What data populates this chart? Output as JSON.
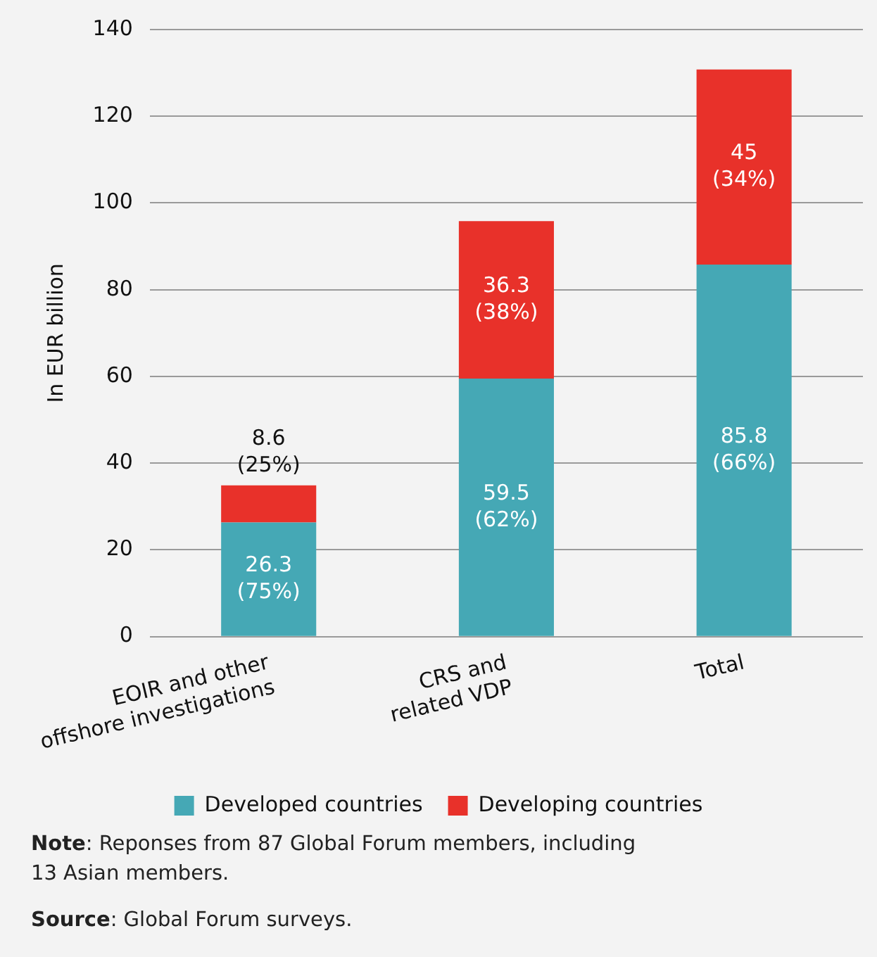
{
  "chart_data": {
    "type": "bar",
    "stacked": true,
    "ylabel": "In EUR billion",
    "categories": [
      "EOIR and other\noffshore investigations",
      "CRS and\nrelated VDP",
      "Total"
    ],
    "series": [
      {
        "name": "Developed countries",
        "color": "#45a8b5",
        "values": [
          26.3,
          59.5,
          85.8
        ],
        "value_labels": [
          "26.3\n(75%)",
          "59.5\n(62%)",
          "85.8\n(66%)"
        ]
      },
      {
        "name": "Developing countries",
        "color": "#e8312a",
        "values": [
          8.6,
          36.3,
          45
        ],
        "value_labels": [
          "8.6\n(25%)",
          "36.3\n(38%)",
          "45\n(34%)"
        ]
      }
    ],
    "ylim": [
      0,
      140
    ],
    "yticks": [
      0,
      20,
      40,
      60,
      80,
      100,
      120,
      140
    ],
    "grid": "y",
    "legend": "bottom",
    "annotations": [
      "Note: Reponses from 87 Global Forum members, including\n13 Asian members.",
      "Source: Global Forum surveys."
    ]
  }
}
